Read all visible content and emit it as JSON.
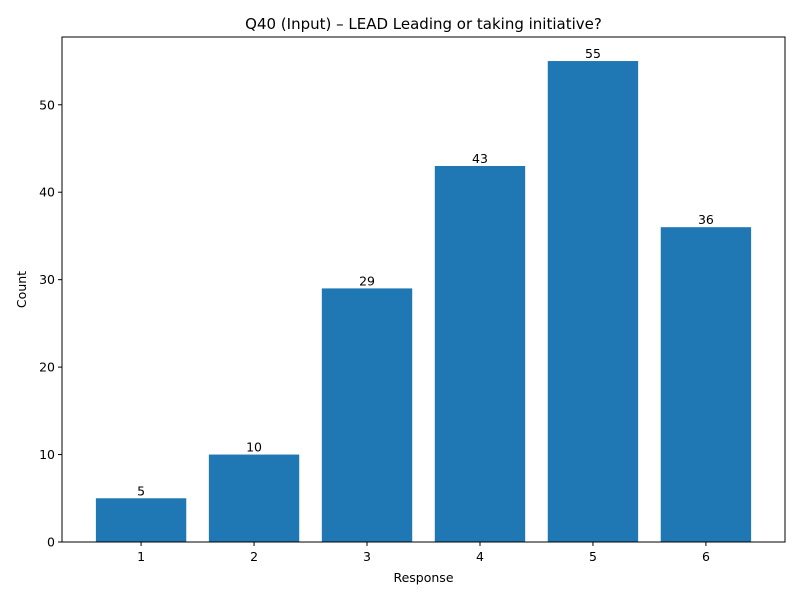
{
  "chart_data": {
    "type": "bar",
    "title": "Q40 (Input) – LEAD Leading or taking initiative?",
    "xlabel": "Response",
    "ylabel": "Count",
    "categories": [
      "1",
      "2",
      "3",
      "4",
      "5",
      "6"
    ],
    "values": [
      5,
      10,
      29,
      43,
      55,
      36
    ],
    "data_labels": [
      "5",
      "10",
      "29",
      "43",
      "55",
      "36"
    ],
    "ylim": [
      0,
      57.75
    ],
    "yticks": [
      0,
      10,
      20,
      30,
      40,
      50
    ],
    "ytick_labels": [
      "0",
      "10",
      "20",
      "30",
      "40",
      "50"
    ],
    "bar_color": "#1f77b4",
    "grid": false,
    "legend": "none"
  }
}
